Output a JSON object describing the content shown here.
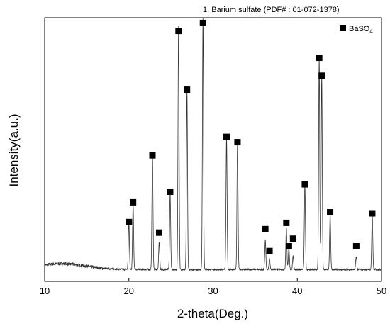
{
  "chart_data": {
    "type": "line",
    "reference_label": "1.    Barium sulfate (PDF# : 01-072-1378)",
    "title": "",
    "xlabel": "2-theta(Deg.)",
    "ylabel": "Intensity(a.u.)",
    "xlim": [
      10,
      50
    ],
    "ylim": [
      0,
      1000
    ],
    "x_ticks": [
      10,
      20,
      30,
      40,
      50
    ],
    "y_ticks_shown": false,
    "grid": false,
    "legend": {
      "position": "top-right",
      "entries": [
        {
          "label_main": "BaSO",
          "label_sub": "4",
          "marker": "filled-square"
        }
      ]
    },
    "series": [
      {
        "color": "#333333",
        "baseline": 45,
        "background_hump": {
          "center": 12,
          "height": 22,
          "width": 4
        },
        "noise": 6,
        "peaks": [
          {
            "x": 20.0,
            "y": 180,
            "marker_y": 225
          },
          {
            "x": 20.5,
            "y": 250,
            "marker_y": 300
          },
          {
            "x": 22.8,
            "y": 430,
            "marker_y": 478
          },
          {
            "x": 23.6,
            "y": 105,
            "marker_y": 185
          },
          {
            "x": 24.9,
            "y": 290,
            "marker_y": 340
          },
          {
            "x": 25.9,
            "y": 925,
            "marker_y": 950
          },
          {
            "x": 26.9,
            "y": 680,
            "marker_y": 727
          },
          {
            "x": 28.8,
            "y": 955,
            "marker_y": 980
          },
          {
            "x": 31.6,
            "y": 500,
            "marker_y": 548
          },
          {
            "x": 32.9,
            "y": 480,
            "marker_y": 528
          },
          {
            "x": 36.2,
            "y": 110,
            "marker_y": 198
          },
          {
            "x": 36.7,
            "y": 40,
            "marker_y": 115
          },
          {
            "x": 38.7,
            "y": 160,
            "marker_y": 222
          },
          {
            "x": 39.0,
            "y": 85,
            "marker_y": 133
          },
          {
            "x": 39.5,
            "y": 50,
            "marker_y": 162
          },
          {
            "x": 40.9,
            "y": 320,
            "marker_y": 368
          },
          {
            "x": 42.6,
            "y": 800,
            "marker_y": 848
          },
          {
            "x": 42.9,
            "y": 740,
            "marker_y": 780
          },
          {
            "x": 43.9,
            "y": 210,
            "marker_y": 262
          },
          {
            "x": 47.0,
            "y": 50,
            "marker_y": 133
          },
          {
            "x": 48.9,
            "y": 210,
            "marker_y": 258
          }
        ]
      }
    ]
  }
}
